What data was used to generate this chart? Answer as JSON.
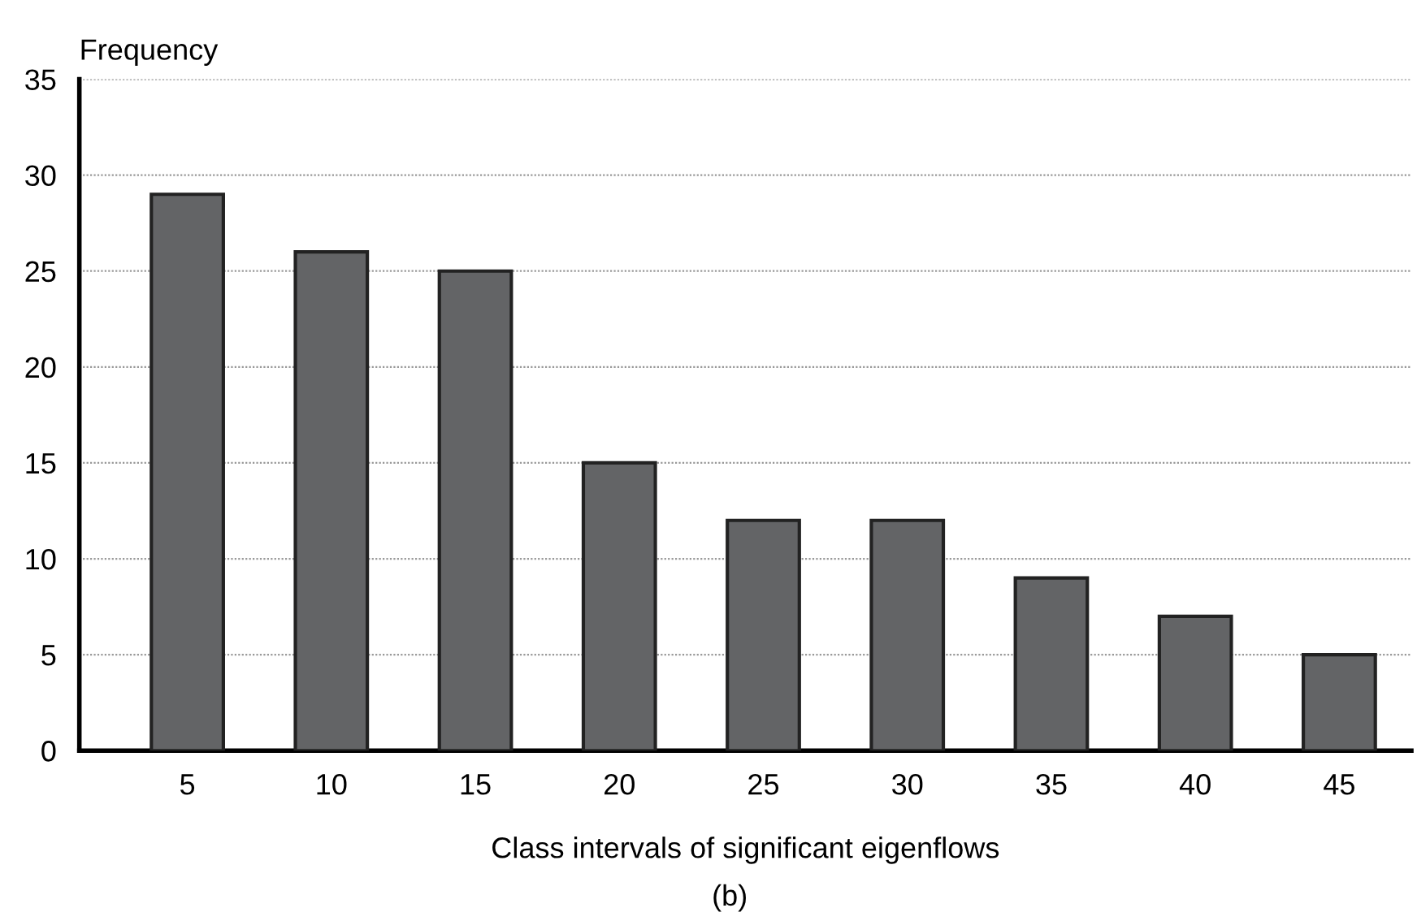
{
  "chart_data": {
    "type": "bar",
    "ylabel": "Frequency",
    "xlabel": "Class intervals of significant eigenflows",
    "annotations": [
      "(b)"
    ],
    "categories": [
      "5",
      "10",
      "15",
      "20",
      "25",
      "30",
      "35",
      "40",
      "45"
    ],
    "values": [
      29,
      26,
      25,
      15,
      12,
      12,
      9,
      7,
      5
    ],
    "color": "#636466",
    "ylim": [
      0,
      35
    ],
    "yticks": [
      0,
      5,
      10,
      15,
      20,
      25,
      30,
      35
    ],
    "grid": "y"
  }
}
